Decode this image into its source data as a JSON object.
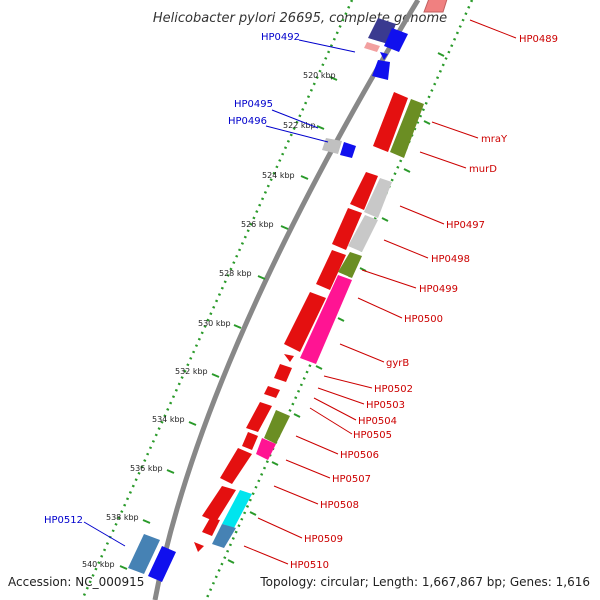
{
  "title": "Helicobacter pylori 26695, complete genome",
  "footer": {
    "accession": "Accession: NC_000915",
    "summary": "Topology: circular; Length: 1,667,867 bp; Genes: 1,616"
  },
  "colors": {
    "reverse_label": "#0000cc",
    "forward_label": "#cc0000",
    "backbone": "#888888",
    "track_dots": "#228b22"
  },
  "ticks": [
    "520 kbp",
    "522 kbp",
    "524 kbp",
    "526 kbp",
    "528 kbp",
    "530 kbp",
    "532 kbp",
    "534 kbp",
    "536 kbp",
    "538 kbp",
    "540 kbp"
  ],
  "left_labels": [
    "HP0492",
    "HP0495",
    "HP0496",
    "HP0512"
  ],
  "right_labels": [
    "HP0489",
    "mraY",
    "murD",
    "HP0497",
    "HP0498",
    "HP0499",
    "HP0500",
    "gyrB",
    "HP0502",
    "HP0503",
    "HP0504",
    "HP0505",
    "HP0506",
    "HP0507",
    "HP0508",
    "HP0509",
    "HP0510"
  ]
}
